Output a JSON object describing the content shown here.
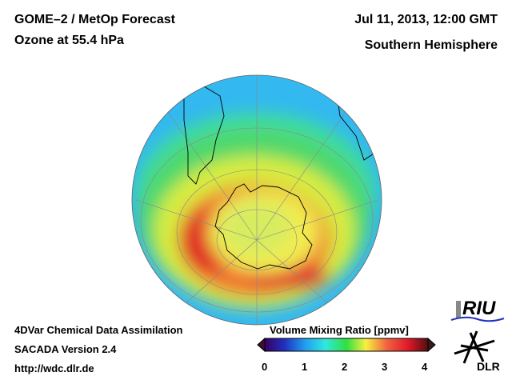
{
  "header": {
    "title_line1": "GOME–2 / MetOp Forecast",
    "title_line2": "Ozone at 55.4 hPa",
    "date": "Jul 11, 2013, 12:00 GMT",
    "region": "Southern Hemisphere"
  },
  "footer": {
    "line1": "4DVar Chemical Data Assimilation",
    "line2": "SACADA Version 2.4",
    "line3": "http://wdc.dlr.de"
  },
  "colorbar": {
    "title": "Volume Mixing Ratio [ppmv]",
    "ticks": [
      "0",
      "1",
      "2",
      "3",
      "4"
    ],
    "range": [
      0,
      4
    ]
  },
  "logos": {
    "riu": "RIU",
    "dlr": "DLR"
  }
}
